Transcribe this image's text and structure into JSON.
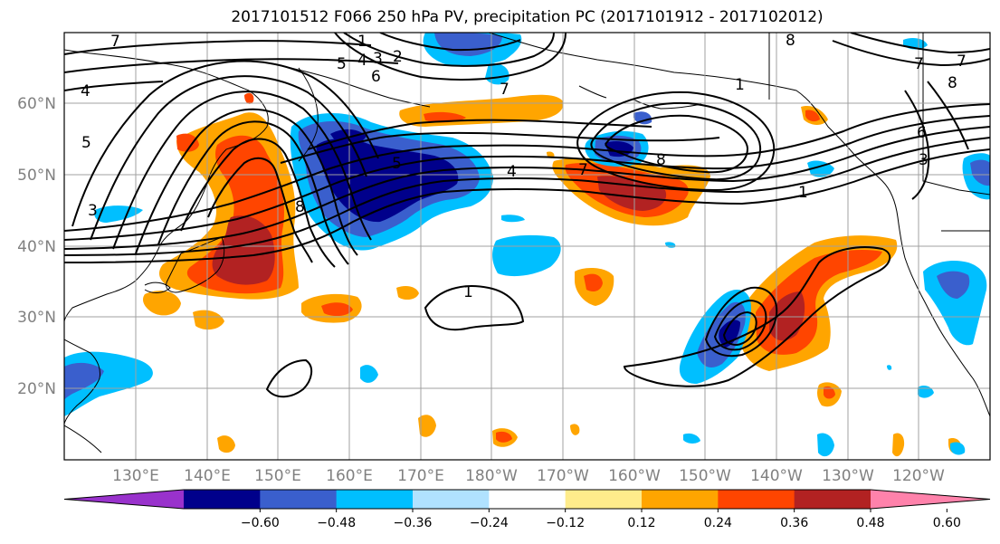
{
  "title": "2017101512 F066 250 hPa PV, precipitation PC (2017101912 - 2017102012)",
  "map": {
    "lat_labels": [
      "60°N",
      "50°N",
      "40°N",
      "30°N",
      "20°N"
    ],
    "lon_labels": [
      "130°E",
      "140°E",
      "150°E",
      "160°E",
      "170°E",
      "180°W",
      "170°W",
      "160°W",
      "150°W",
      "140°W",
      "130°W",
      "120°W"
    ],
    "contour_labels": [
      "7",
      "1",
      "5",
      "4",
      "3",
      "2",
      "6",
      "7",
      "8",
      "7",
      "7",
      "8",
      "4",
      "5",
      "3",
      "8",
      "5",
      "7",
      "4",
      "8",
      "1",
      "6",
      "3",
      "1",
      "1"
    ]
  },
  "colorbar": {
    "ticks": [
      "−0.60",
      "−0.48",
      "−0.36",
      "−0.24",
      "−0.12",
      "0.12",
      "0.24",
      "0.36",
      "0.48",
      "0.60"
    ],
    "colors": [
      "#9932cc",
      "#00008b",
      "#3a5fcd",
      "#00bfff",
      "#b0e2ff",
      "#ffffff",
      "#ffec8b",
      "#ffa500",
      "#ff4500",
      "#b22222",
      "#ff82ab"
    ]
  }
}
